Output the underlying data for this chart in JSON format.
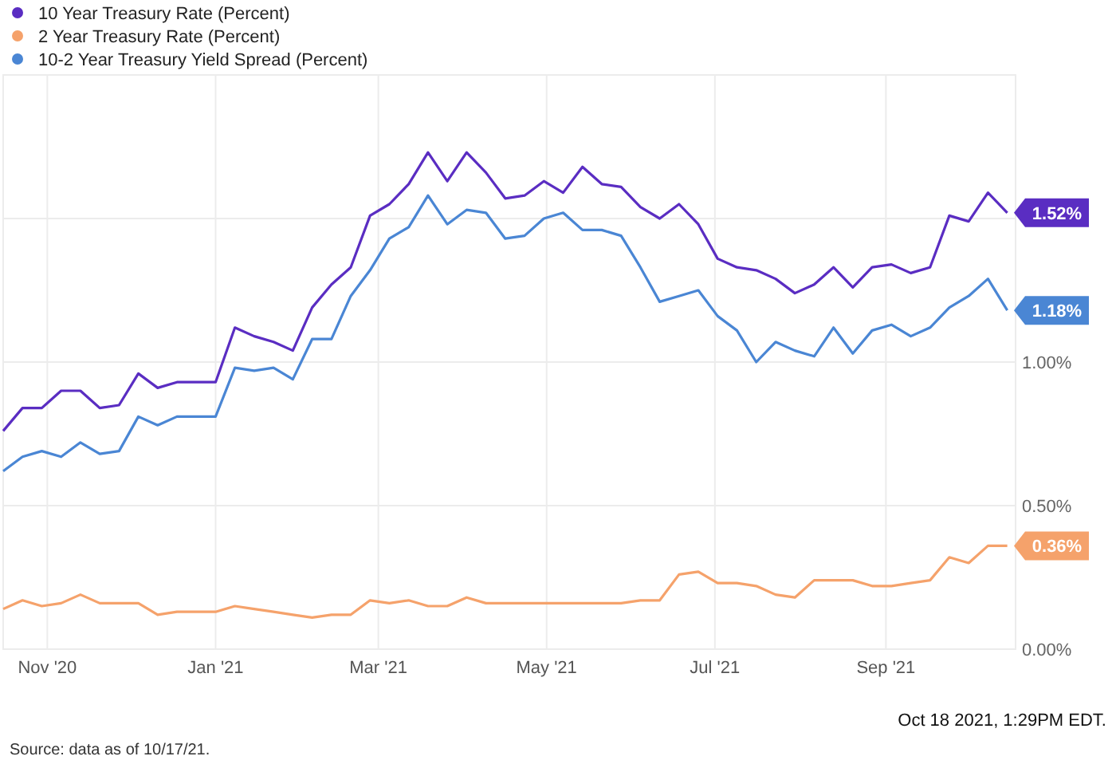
{
  "chart_data": {
    "type": "line",
    "x": [
      "2020-10-16",
      "2020-10-23",
      "2020-10-30",
      "2020-11-06",
      "2020-11-13",
      "2020-11-20",
      "2020-11-27",
      "2020-12-04",
      "2020-12-11",
      "2020-12-18",
      "2020-12-25",
      "2021-01-01",
      "2021-01-08",
      "2021-01-15",
      "2021-01-22",
      "2021-01-29",
      "2021-02-05",
      "2021-02-12",
      "2021-02-19",
      "2021-02-26",
      "2021-03-05",
      "2021-03-12",
      "2021-03-19",
      "2021-03-26",
      "2021-04-02",
      "2021-04-09",
      "2021-04-16",
      "2021-04-23",
      "2021-04-30",
      "2021-05-07",
      "2021-05-14",
      "2021-05-21",
      "2021-05-28",
      "2021-06-04",
      "2021-06-11",
      "2021-06-18",
      "2021-06-25",
      "2021-07-02",
      "2021-07-09",
      "2021-07-16",
      "2021-07-23",
      "2021-07-30",
      "2021-08-06",
      "2021-08-13",
      "2021-08-20",
      "2021-08-27",
      "2021-09-03",
      "2021-09-10",
      "2021-09-17",
      "2021-09-24",
      "2021-10-01",
      "2021-10-08",
      "2021-10-15"
    ],
    "series": [
      {
        "name": "10 Year Treasury Rate (Percent)",
        "color": "#5a2dc2",
        "values": [
          0.76,
          0.84,
          0.84,
          0.9,
          0.9,
          0.84,
          0.85,
          0.96,
          0.91,
          0.93,
          0.93,
          0.93,
          1.12,
          1.09,
          1.07,
          1.04,
          1.19,
          1.27,
          1.33,
          1.51,
          1.55,
          1.62,
          1.73,
          1.63,
          1.73,
          1.66,
          1.57,
          1.58,
          1.63,
          1.59,
          1.68,
          1.62,
          1.61,
          1.54,
          1.5,
          1.55,
          1.48,
          1.36,
          1.33,
          1.32,
          1.29,
          1.24,
          1.27,
          1.33,
          1.26,
          1.33,
          1.34,
          1.31,
          1.33,
          1.51,
          1.49,
          1.59,
          1.52
        ],
        "value_labels": [
          null,
          null,
          null,
          null,
          null,
          null,
          null,
          null,
          null,
          null,
          null,
          null,
          null,
          null,
          null,
          null,
          null,
          null,
          null,
          null,
          null,
          null,
          null,
          null,
          null,
          null,
          null,
          null,
          null,
          null,
          null,
          null,
          null,
          null,
          null,
          null,
          null,
          null,
          null,
          null,
          null,
          null,
          null,
          null,
          null,
          null,
          null,
          null,
          null,
          null,
          null,
          null,
          "1.52%"
        ]
      },
      {
        "name": "2 Year Treasury Rate (Percent)",
        "color": "#f5a26b",
        "values": [
          0.14,
          0.17,
          0.15,
          0.16,
          0.19,
          0.16,
          0.16,
          0.16,
          0.12,
          0.13,
          0.13,
          0.13,
          0.15,
          0.14,
          0.13,
          0.12,
          0.11,
          0.12,
          0.12,
          0.17,
          0.16,
          0.17,
          0.15,
          0.15,
          0.18,
          0.16,
          0.16,
          0.16,
          0.16,
          0.16,
          0.16,
          0.16,
          0.16,
          0.17,
          0.17,
          0.26,
          0.27,
          0.23,
          0.23,
          0.22,
          0.19,
          0.18,
          0.24,
          0.24,
          0.24,
          0.22,
          0.22,
          0.23,
          0.24,
          0.32,
          0.3,
          0.36,
          0.36
        ],
        "value_labels": [
          null,
          null,
          null,
          null,
          null,
          null,
          null,
          null,
          null,
          null,
          null,
          null,
          null,
          null,
          null,
          null,
          null,
          null,
          null,
          null,
          null,
          null,
          null,
          null,
          null,
          null,
          null,
          null,
          null,
          null,
          null,
          null,
          null,
          null,
          null,
          null,
          null,
          null,
          null,
          null,
          null,
          null,
          null,
          null,
          null,
          null,
          null,
          null,
          null,
          null,
          null,
          null,
          "0.36%"
        ]
      },
      {
        "name": "10-2 Year Treasury Yield Spread (Percent)",
        "color": "#4a86d4",
        "values": [
          0.62,
          0.67,
          0.69,
          0.67,
          0.72,
          0.68,
          0.69,
          0.81,
          0.78,
          0.81,
          0.81,
          0.81,
          0.98,
          0.97,
          0.98,
          0.94,
          1.08,
          1.08,
          1.23,
          1.32,
          1.43,
          1.47,
          1.58,
          1.48,
          1.53,
          1.52,
          1.43,
          1.44,
          1.5,
          1.52,
          1.46,
          1.46,
          1.44,
          1.33,
          1.21,
          1.23,
          1.25,
          1.16,
          1.11,
          1.0,
          1.07,
          1.04,
          1.02,
          1.12,
          1.03,
          1.11,
          1.13,
          1.09,
          1.12,
          1.19,
          1.23,
          1.29,
          1.18
        ],
        "value_labels": [
          null,
          null,
          null,
          null,
          null,
          null,
          null,
          null,
          null,
          null,
          null,
          null,
          null,
          null,
          null,
          null,
          null,
          null,
          null,
          null,
          null,
          null,
          null,
          null,
          null,
          null,
          null,
          null,
          null,
          null,
          null,
          null,
          null,
          null,
          null,
          null,
          null,
          null,
          null,
          null,
          null,
          null,
          null,
          null,
          null,
          null,
          null,
          null,
          null,
          null,
          null,
          null,
          "1.18%"
        ]
      }
    ],
    "xlim": [
      "2020-10-16",
      "2021-10-18"
    ],
    "xticks": [
      {
        "value": "2020-11-01",
        "label": "Nov '20"
      },
      {
        "value": "2021-01-01",
        "label": "Jan '21"
      },
      {
        "value": "2021-03-01",
        "label": "Mar '21"
      },
      {
        "value": "2021-05-01",
        "label": "May '21"
      },
      {
        "value": "2021-07-01",
        "label": "Jul '21"
      },
      {
        "value": "2021-09-01",
        "label": "Sep '21"
      }
    ],
    "ylim": [
      0,
      2
    ],
    "yticks": [
      {
        "value": 0,
        "label": "0.00%"
      },
      {
        "value": 0.5,
        "label": "0.50%"
      },
      {
        "value": 1,
        "label": "1.00%"
      },
      {
        "value": 1.5,
        "label": null
      }
    ],
    "grid": true,
    "legend": "top left",
    "marker": "none",
    "line_style": "solid",
    "annotations": [
      "Oct 18 2021, 1:29PM EDT.",
      "Source: data as of 10/17/21."
    ]
  }
}
